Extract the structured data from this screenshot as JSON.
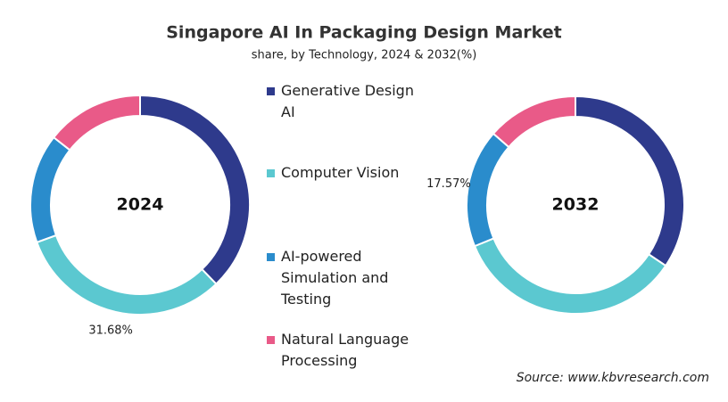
{
  "title": "Singapore AI In Packaging Design Market",
  "subtitle": "share, by Technology, 2024 & 2032(%)",
  "source": "Source: www.kbvresearch.com",
  "chart_data": [
    {
      "type": "pie",
      "center_label": "2024",
      "categories": [
        "Generative Design AI",
        "Computer Vision",
        "AI-powered Simulation and Testing",
        "Natural Language Processing"
      ],
      "colors": [
        "#2e3a8c",
        "#5bc8d0",
        "#2a8ccc",
        "#e95a88"
      ],
      "values": [
        37.8,
        31.68,
        16.1,
        14.42
      ],
      "value_labels": [
        null,
        "31.68%",
        null,
        null
      ]
    },
    {
      "type": "pie",
      "center_label": "2032",
      "categories": [
        "Generative Design AI",
        "Computer Vision",
        "AI-powered Simulation and Testing",
        "Natural Language Processing"
      ],
      "colors": [
        "#2e3a8c",
        "#5bc8d0",
        "#2a8ccc",
        "#e95a88"
      ],
      "values": [
        34.43,
        34.4,
        17.57,
        13.6
      ],
      "value_labels": [
        null,
        null,
        "17.57%",
        null
      ]
    }
  ]
}
